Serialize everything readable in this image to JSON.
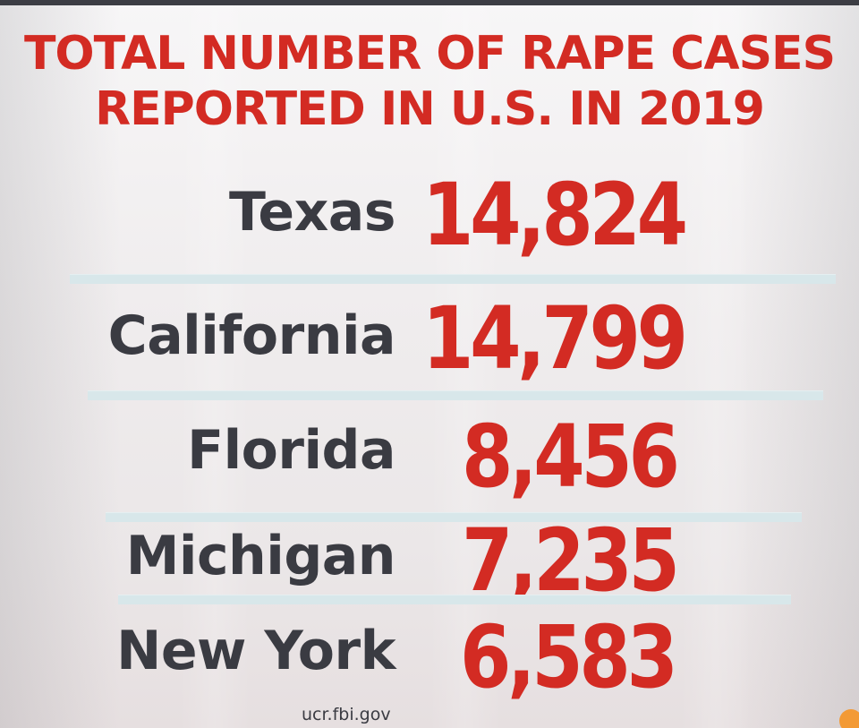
{
  "title": {
    "line1": "TOTAL NUMBER OF RAPE CASES",
    "line2": "REPORTED IN U.S. IN 2019"
  },
  "rows": [
    {
      "state": "Texas",
      "value": "14,824"
    },
    {
      "state": "California",
      "value": "14,799"
    },
    {
      "state": "Florida",
      "value": "8,456"
    },
    {
      "state": "Michigan",
      "value": "7,235"
    },
    {
      "state": "New York",
      "value": "6,583"
    }
  ],
  "source": "ucr.fbi.gov",
  "colors": {
    "title_red": "#d32b23",
    "state_text": "#3a3b42",
    "divider": "#d8e7ea",
    "background": "#efeced"
  }
}
